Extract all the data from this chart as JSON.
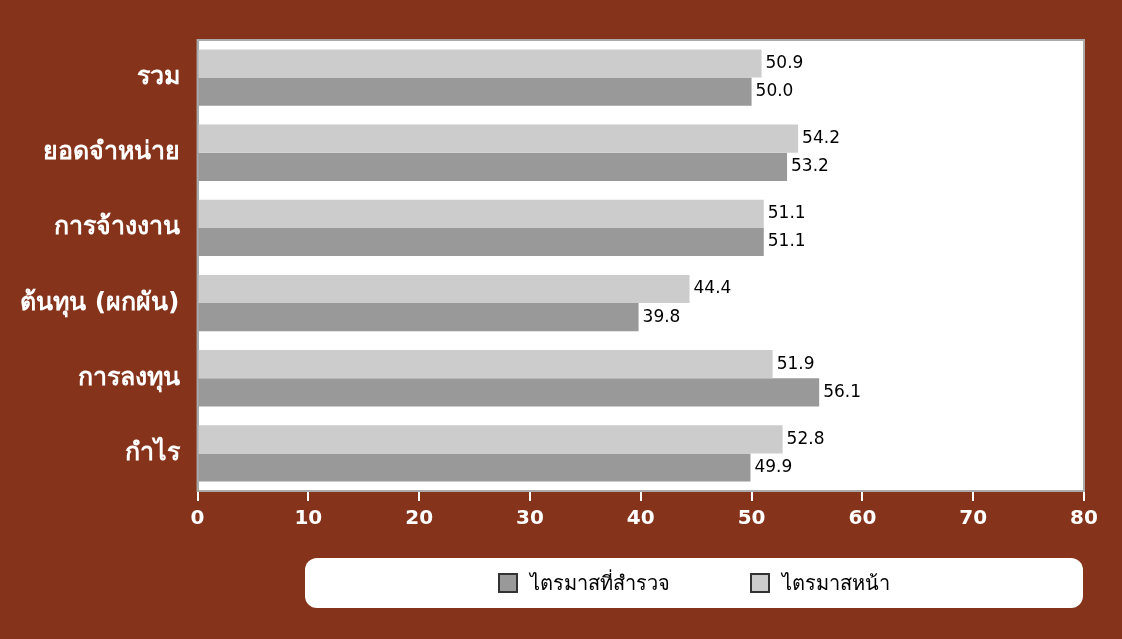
{
  "chart_data": {
    "type": "bar",
    "orientation": "horizontal",
    "categories": [
      "รวม",
      "ยอดจำหน่าย",
      "การจ้างงาน",
      "ต้นทุน (ผกผัน)",
      "การลงทุน",
      "กำไร"
    ],
    "series": [
      {
        "name": "ไตรมาสที่สำรวจ",
        "color": "#999999",
        "values": [
          50.0,
          53.2,
          51.1,
          39.8,
          56.1,
          49.9
        ]
      },
      {
        "name": "ไตรมาสหน้า",
        "color": "#cccccc",
        "values": [
          50.9,
          54.2,
          51.1,
          44.4,
          51.9,
          52.8
        ]
      }
    ],
    "value_labels": [
      [
        "50.0",
        "53.2",
        "51.1",
        "39.8",
        "56.1",
        "49.9"
      ],
      [
        "50.9",
        "54.2",
        "51.1",
        "44.4",
        "51.9",
        "52.8"
      ]
    ],
    "xlim": [
      0,
      80
    ],
    "xticks": [
      0,
      10,
      20,
      30,
      40,
      50,
      60,
      70,
      80
    ],
    "grid": false,
    "legend": "bottom"
  }
}
